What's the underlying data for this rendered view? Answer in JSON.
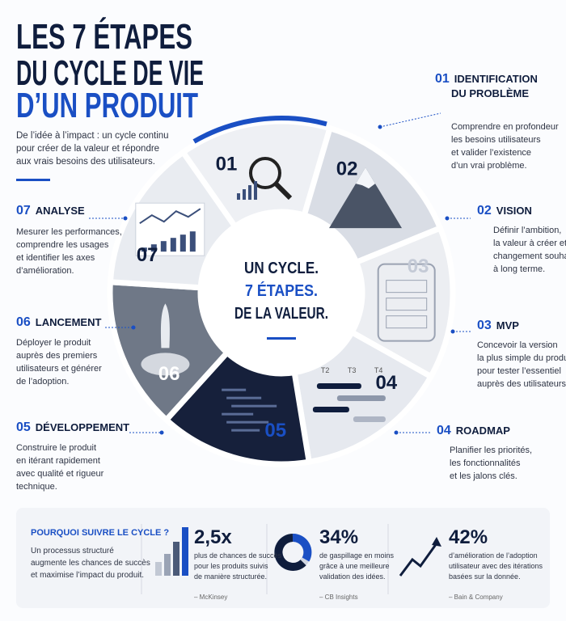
{
  "header": {
    "title": [
      "LES 7 ÉTAPES",
      "DU CYCLE DE VIE",
      "D’UN PRODUIT"
    ],
    "intro": [
      "De l’idée à l’impact : un cycle continu",
      "pour créer de la valeur et répondre",
      "aux vrais besoins des utilisateurs."
    ]
  },
  "steps": [
    {
      "number": "01",
      "title": [
        "IDENTIFICATION",
        "DU PROBLÈME"
      ],
      "description": [
        "Comprendre en profondeur",
        "les besoins utilisateurs",
        "et valider l’existence",
        "d’un vrai problème."
      ]
    },
    {
      "number": "02",
      "title": [
        "VISION"
      ],
      "description": [
        "Définir l’ambition,",
        "la valeur à créer et le",
        "changement souhaité",
        "à long terme."
      ]
    },
    {
      "number": "03",
      "title": [
        "MVP"
      ],
      "description": [
        "Concevoir la version",
        "la plus simple du produit",
        "pour tester l’essentiel",
        "auprès des utilisateurs."
      ]
    },
    {
      "number": "04",
      "title": [
        "ROADMAP"
      ],
      "description": [
        "Planifier les priorités,",
        "les fonctionnalités",
        "et les jalons clés."
      ]
    },
    {
      "number": "05",
      "title": [
        "DÉVELOPPEMENT"
      ],
      "description": [
        "Construire le produit",
        "en itérant rapidement",
        "avec qualité et rigueur",
        "technique."
      ]
    },
    {
      "number": "06",
      "title": [
        "LANCEMENT"
      ],
      "description": [
        "Déployer le produit",
        "auprès des premiers",
        "utilisateurs et générer",
        "de l’adoption."
      ]
    },
    {
      "number": "07",
      "title": [
        "ANALYSE"
      ],
      "description": [
        "Mesurer les performances,",
        "comprendre les usages",
        "et identifier les axes",
        "d’amélioration."
      ]
    }
  ],
  "wheel": {
    "roadmap_columns": [
      "T2",
      "T3",
      "T4"
    ]
  },
  "center": {
    "lines": [
      "UN CYCLE.",
      "7 ÉTAPES.",
      "DE LA VALEUR."
    ]
  },
  "footer": {
    "heading": "POURQUOI SUIVRE LE CYCLE ?",
    "text": [
      "Un processus structuré",
      "augmente les chances de succès",
      "et maximise l’impact du produit."
    ],
    "stats": [
      {
        "value": "2,5x",
        "text": [
          "plus de chances de succès",
          "pour les produits suivis",
          "de manière structurée."
        ],
        "source": "– McKinsey"
      },
      {
        "value": "34%",
        "text": [
          "de gaspillage en moins",
          "grâce à une meilleure",
          "validation des idées."
        ],
        "source": "– CB Insights"
      },
      {
        "value": "42%",
        "text": [
          "d’amélioration de l’adoption",
          "utilisateur avec des itérations",
          "basées sur la donnée."
        ],
        "source": "– Bain & Company"
      }
    ]
  }
}
